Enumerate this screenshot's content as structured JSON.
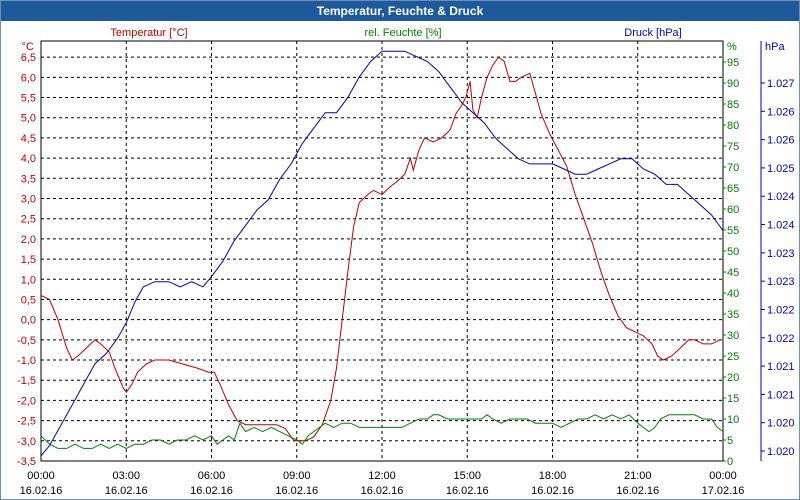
{
  "window": {
    "title": "Temperatur, Feuchte & Druck"
  },
  "colors": {
    "temperature": "#c00000",
    "humidity": "#008000",
    "pressure": "#0000c0",
    "title_bar": "#1e5a9b",
    "grid": "#000000"
  },
  "chart_data": {
    "type": "line",
    "title": "Temperatur, Feuchte & Druck",
    "grid": true,
    "x": {
      "range_hours": [
        0,
        24
      ],
      "tick_times": [
        "00:00",
        "03:00",
        "06:00",
        "09:00",
        "12:00",
        "15:00",
        "18:00",
        "21:00",
        "00:00"
      ],
      "tick_dates": [
        "16.02.16",
        "16.02.16",
        "16.02.16",
        "16.02.16",
        "16.02.16",
        "16.02.16",
        "16.02.16",
        "16.02.16",
        "17.02.16"
      ]
    },
    "axes": {
      "temperature": {
        "label": "Temperatur [°C]",
        "unit": "°C",
        "range": [
          -3.5,
          6.9
        ],
        "ticks": [
          "6,5",
          "6,0",
          "5,5",
          "5,0",
          "4,5",
          "4,0",
          "3,5",
          "3,0",
          "2,5",
          "2,0",
          "1,5",
          "1,0",
          "0,5",
          "0,0",
          "-0,5",
          "-1,0",
          "-1,5",
          "-2,0",
          "-2,5",
          "-3,0",
          "-3,5"
        ]
      },
      "humidity": {
        "label": "rel. Feuchte [%]",
        "unit": "%",
        "range": [
          0,
          100
        ],
        "ticks": [
          "95",
          "90",
          "85",
          "80",
          "75",
          "70",
          "65",
          "60",
          "55",
          "50",
          "45",
          "40",
          "35",
          "30",
          "25",
          "20",
          "15",
          "10",
          "5",
          "0"
        ]
      },
      "pressure": {
        "label": "Druck [hPa]",
        "unit": "hPa",
        "range": [
          1.0195,
          1.0277
        ],
        "ticks": [
          "1.027",
          "1.026",
          "1.026",
          "1.025",
          "1.024",
          "1.024",
          "1.023",
          "1.023",
          "1.022",
          "1.022",
          "1.021",
          "1.021",
          "1.020",
          "1.020"
        ]
      }
    },
    "series": [
      {
        "name": "Temperatur [°C]",
        "axis": "temperature",
        "points": [
          [
            0,
            0.6
          ],
          [
            0.3,
            0.5
          ],
          [
            0.6,
            0.0
          ],
          [
            0.9,
            -0.7
          ],
          [
            1.1,
            -1.0
          ],
          [
            1.3,
            -0.9
          ],
          [
            1.6,
            -0.7
          ],
          [
            1.9,
            -0.5
          ],
          [
            2.1,
            -0.6
          ],
          [
            2.4,
            -0.8
          ],
          [
            2.6,
            -1.2
          ],
          [
            2.9,
            -1.7
          ],
          [
            3.0,
            -1.8
          ],
          [
            3.2,
            -1.6
          ],
          [
            3.4,
            -1.3
          ],
          [
            3.7,
            -1.1
          ],
          [
            4.0,
            -1.0
          ],
          [
            4.5,
            -1.0
          ],
          [
            5.0,
            -1.1
          ],
          [
            5.5,
            -1.2
          ],
          [
            5.9,
            -1.3
          ],
          [
            6.1,
            -1.3
          ],
          [
            6.3,
            -1.6
          ],
          [
            6.6,
            -2.1
          ],
          [
            6.9,
            -2.5
          ],
          [
            7.2,
            -2.6
          ],
          [
            7.6,
            -2.6
          ],
          [
            8.0,
            -2.6
          ],
          [
            8.3,
            -2.6
          ],
          [
            8.6,
            -2.7
          ],
          [
            8.9,
            -3.0
          ],
          [
            9.3,
            -3.0
          ],
          [
            9.6,
            -2.9
          ],
          [
            9.9,
            -2.6
          ],
          [
            10.2,
            -2.0
          ],
          [
            10.4,
            -1.2
          ],
          [
            10.6,
            0.0
          ],
          [
            10.8,
            1.2
          ],
          [
            11.0,
            2.3
          ],
          [
            11.2,
            2.9
          ],
          [
            11.5,
            3.1
          ],
          [
            11.7,
            3.2
          ],
          [
            12.0,
            3.1
          ],
          [
            12.3,
            3.3
          ],
          [
            12.5,
            3.4
          ],
          [
            12.8,
            3.6
          ],
          [
            13.0,
            4.0
          ],
          [
            13.1,
            3.7
          ],
          [
            13.3,
            4.2
          ],
          [
            13.5,
            4.5
          ],
          [
            13.8,
            4.4
          ],
          [
            14.1,
            4.5
          ],
          [
            14.4,
            4.7
          ],
          [
            14.6,
            5.1
          ],
          [
            14.8,
            5.3
          ],
          [
            14.95,
            5.5
          ],
          [
            15.1,
            5.9
          ],
          [
            15.2,
            5.2
          ],
          [
            15.35,
            5.0
          ],
          [
            15.5,
            5.5
          ],
          [
            15.7,
            6.0
          ],
          [
            15.9,
            6.3
          ],
          [
            16.1,
            6.5
          ],
          [
            16.3,
            6.4
          ],
          [
            16.5,
            5.9
          ],
          [
            16.7,
            5.9
          ],
          [
            16.9,
            6.0
          ],
          [
            17.2,
            6.1
          ],
          [
            17.4,
            5.6
          ],
          [
            17.6,
            5.1
          ],
          [
            17.9,
            4.6
          ],
          [
            18.2,
            4.2
          ],
          [
            18.5,
            3.8
          ],
          [
            18.8,
            3.1
          ],
          [
            19.1,
            2.5
          ],
          [
            19.4,
            1.9
          ],
          [
            19.7,
            1.2
          ],
          [
            20.0,
            0.6
          ],
          [
            20.3,
            0.1
          ],
          [
            20.6,
            -0.2
          ],
          [
            20.9,
            -0.3
          ],
          [
            21.2,
            -0.4
          ],
          [
            21.5,
            -0.6
          ],
          [
            21.7,
            -0.9
          ],
          [
            21.9,
            -1.0
          ],
          [
            22.2,
            -0.9
          ],
          [
            22.5,
            -0.7
          ],
          [
            22.8,
            -0.5
          ],
          [
            23.0,
            -0.5
          ],
          [
            23.3,
            -0.6
          ],
          [
            23.6,
            -0.6
          ],
          [
            23.9,
            -0.5
          ]
        ]
      },
      {
        "name": "rel. Feuchte [%]",
        "axis": "humidity",
        "points": [
          [
            0,
            6
          ],
          [
            0.3,
            4
          ],
          [
            0.6,
            3
          ],
          [
            0.9,
            3
          ],
          [
            1.2,
            4
          ],
          [
            1.5,
            3
          ],
          [
            1.8,
            3
          ],
          [
            2.1,
            4
          ],
          [
            2.4,
            3
          ],
          [
            2.7,
            4
          ],
          [
            3.0,
            3
          ],
          [
            3.3,
            4
          ],
          [
            3.6,
            4
          ],
          [
            3.9,
            5
          ],
          [
            4.2,
            5
          ],
          [
            4.5,
            4
          ],
          [
            4.8,
            5
          ],
          [
            5.1,
            5
          ],
          [
            5.4,
            6
          ],
          [
            5.7,
            5
          ],
          [
            6.0,
            6
          ],
          [
            6.2,
            4
          ],
          [
            6.4,
            5
          ],
          [
            6.6,
            6
          ],
          [
            6.8,
            5
          ],
          [
            7.0,
            9
          ],
          [
            7.2,
            7
          ],
          [
            7.5,
            8
          ],
          [
            7.8,
            7
          ],
          [
            8.1,
            8
          ],
          [
            8.4,
            7
          ],
          [
            8.7,
            6
          ],
          [
            9.0,
            5
          ],
          [
            9.2,
            4
          ],
          [
            9.4,
            6
          ],
          [
            9.6,
            7
          ],
          [
            9.8,
            8
          ],
          [
            10.0,
            9
          ],
          [
            10.3,
            8
          ],
          [
            10.6,
            9
          ],
          [
            10.9,
            9
          ],
          [
            11.2,
            8
          ],
          [
            11.5,
            8
          ],
          [
            11.8,
            8
          ],
          [
            12.1,
            8
          ],
          [
            12.4,
            8
          ],
          [
            12.7,
            8
          ],
          [
            13.0,
            9
          ],
          [
            13.3,
            10
          ],
          [
            13.6,
            10
          ],
          [
            13.8,
            11
          ],
          [
            14.0,
            11
          ],
          [
            14.3,
            10
          ],
          [
            14.6,
            10
          ],
          [
            14.9,
            10
          ],
          [
            15.2,
            10
          ],
          [
            15.5,
            10
          ],
          [
            15.7,
            11
          ],
          [
            15.9,
            10
          ],
          [
            16.2,
            9
          ],
          [
            16.5,
            10
          ],
          [
            16.8,
            10
          ],
          [
            17.1,
            10
          ],
          [
            17.4,
            9
          ],
          [
            17.7,
            9
          ],
          [
            18.0,
            9
          ],
          [
            18.3,
            8
          ],
          [
            18.6,
            9
          ],
          [
            18.9,
            10
          ],
          [
            19.2,
            10
          ],
          [
            19.5,
            11
          ],
          [
            19.8,
            10
          ],
          [
            20.1,
            11
          ],
          [
            20.4,
            10
          ],
          [
            20.7,
            11
          ],
          [
            21.0,
            9
          ],
          [
            21.2,
            8
          ],
          [
            21.4,
            7
          ],
          [
            21.6,
            8
          ],
          [
            21.8,
            10
          ],
          [
            22.1,
            11
          ],
          [
            22.4,
            11
          ],
          [
            22.7,
            11
          ],
          [
            23.0,
            11
          ],
          [
            23.3,
            10
          ],
          [
            23.6,
            10
          ],
          [
            23.8,
            8
          ],
          [
            24.0,
            7
          ]
        ]
      },
      {
        "name": "Druck [hPa]",
        "axis": "pressure",
        "points": [
          [
            0,
            1.0196
          ],
          [
            0.3,
            1.0198
          ],
          [
            0.7,
            1.0202
          ],
          [
            1.1,
            1.0206
          ],
          [
            1.5,
            1.021
          ],
          [
            1.9,
            1.0214
          ],
          [
            2.3,
            1.0216
          ],
          [
            2.7,
            1.0219
          ],
          [
            3.0,
            1.0222
          ],
          [
            3.3,
            1.0226
          ],
          [
            3.6,
            1.0229
          ],
          [
            4.0,
            1.023
          ],
          [
            4.5,
            1.023
          ],
          [
            4.9,
            1.0229
          ],
          [
            5.3,
            1.023
          ],
          [
            5.7,
            1.0229
          ],
          [
            6.0,
            1.0231
          ],
          [
            6.4,
            1.0234
          ],
          [
            6.8,
            1.0238
          ],
          [
            7.2,
            1.0241
          ],
          [
            7.6,
            1.0244
          ],
          [
            8.0,
            1.0246
          ],
          [
            8.4,
            1.025
          ],
          [
            8.8,
            1.0253
          ],
          [
            9.2,
            1.0257
          ],
          [
            9.6,
            1.026
          ],
          [
            10.0,
            1.0263
          ],
          [
            10.4,
            1.0263
          ],
          [
            10.8,
            1.0266
          ],
          [
            11.2,
            1.027
          ],
          [
            11.6,
            1.0273
          ],
          [
            12.0,
            1.0275
          ],
          [
            12.4,
            1.0275
          ],
          [
            12.8,
            1.0275
          ],
          [
            13.2,
            1.0274
          ],
          [
            13.6,
            1.0273
          ],
          [
            14.0,
            1.0271
          ],
          [
            14.4,
            1.0268
          ],
          [
            14.8,
            1.0265
          ],
          [
            15.2,
            1.0263
          ],
          [
            15.6,
            1.0261
          ],
          [
            16.0,
            1.0258
          ],
          [
            16.4,
            1.0256
          ],
          [
            16.8,
            1.0254
          ],
          [
            17.2,
            1.0253
          ],
          [
            17.6,
            1.0253
          ],
          [
            18.0,
            1.0253
          ],
          [
            18.4,
            1.0252
          ],
          [
            18.8,
            1.0251
          ],
          [
            19.2,
            1.0251
          ],
          [
            19.6,
            1.0252
          ],
          [
            20.0,
            1.0253
          ],
          [
            20.4,
            1.0254
          ],
          [
            20.8,
            1.0254
          ],
          [
            21.2,
            1.0252
          ],
          [
            21.6,
            1.0251
          ],
          [
            22.0,
            1.0249
          ],
          [
            22.4,
            1.0249
          ],
          [
            22.8,
            1.0247
          ],
          [
            23.2,
            1.0245
          ],
          [
            23.6,
            1.0243
          ],
          [
            24.0,
            1.024
          ]
        ]
      }
    ]
  }
}
